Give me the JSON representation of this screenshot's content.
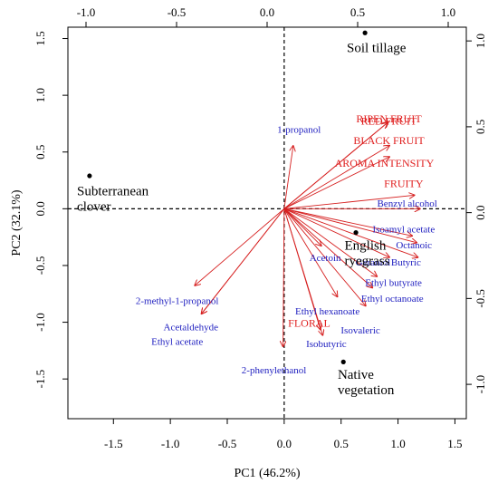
{
  "chart_data": {
    "type": "biplot",
    "xlabel": "PC1 (46.2%)",
    "ylabel": "PC2 (32.1%)",
    "xlim": [
      -1.9,
      1.6
    ],
    "ylim": [
      -1.85,
      1.6
    ],
    "top_lim": [
      -1.1,
      1.1
    ],
    "right_lim": [
      -1.2,
      1.08
    ],
    "bottom_ticks": [
      -1.5,
      -1.0,
      -0.5,
      0.0,
      0.5,
      1.0,
      1.5
    ],
    "left_ticks": [
      -1.5,
      -1.0,
      -0.5,
      0.0,
      0.5,
      1.0,
      1.5
    ],
    "top_ticks": [
      -1.0,
      -0.5,
      0.0,
      0.5,
      1.0
    ],
    "right_ticks": [
      -1.0,
      -0.5,
      0.0,
      0.5,
      1.0
    ],
    "bottom_tick_labels": [
      "-1.5",
      "-1.0",
      "-0.5",
      "0.0",
      "0.5",
      "1.0",
      "1.5"
    ],
    "left_tick_labels": [
      "-1.5",
      "-1.0",
      "-0.5",
      "0.0",
      "0.5",
      "1.0",
      "1.5"
    ],
    "top_tick_labels": [
      "-1.0",
      "-0.5",
      "0.0",
      "0.5",
      "1.0"
    ],
    "right_tick_labels": [
      "-1.0",
      "-0.5",
      "0.0",
      "0.5",
      "1.0"
    ],
    "variables": [
      {
        "name": "RED FRUIT",
        "x": 0.92,
        "y": 0.77,
        "group": "sensory",
        "lx": 0.92,
        "ly": 0.74
      },
      {
        "name": "RIPEN FRUIT",
        "x": 0.91,
        "y": 0.76,
        "group": "sensory",
        "lx": 0.92,
        "ly": 0.76
      },
      {
        "name": "BLACK FRUIT",
        "x": 0.93,
        "y": 0.56,
        "group": "sensory",
        "lx": 0.92,
        "ly": 0.57
      },
      {
        "name": "AROMA INTENSITY",
        "x": 0.93,
        "y": 0.46,
        "group": "sensory",
        "lx": 0.88,
        "ly": 0.37
      },
      {
        "name": "FRUITY",
        "x": 1.15,
        "y": 0.12,
        "group": "sensory",
        "lx": 1.05,
        "ly": 0.19
      },
      {
        "name": "FLORAL",
        "x": 0.32,
        "y": -1.07,
        "group": "sensory",
        "lx": 0.22,
        "ly": -1.04
      },
      {
        "name": "1-propanol",
        "x": 0.08,
        "y": 0.56,
        "group": "compound",
        "lx": 0.13,
        "ly": 0.67
      },
      {
        "name": "Benzyl alcohol",
        "x": 1.2,
        "y": 0.0,
        "group": "compound",
        "lx": 1.08,
        "ly": 0.02
      },
      {
        "name": "Isoamyl acetate",
        "x": 1.13,
        "y": -0.24,
        "group": "compound",
        "lx": 1.05,
        "ly": -0.21
      },
      {
        "name": "Octanoic",
        "x": 1.17,
        "y": -0.3,
        "group": "compound",
        "lx": 1.14,
        "ly": -0.35
      },
      {
        "name": "Butyric",
        "x": 1.18,
        "y": -0.43,
        "group": "compound",
        "lx": 1.07,
        "ly": -0.5
      },
      {
        "name": "Geraniol",
        "x": 0.93,
        "y": -0.43,
        "group": "compound",
        "lx": 0.78,
        "ly": -0.5
      },
      {
        "name": "Acetoin",
        "x": 0.33,
        "y": -0.33,
        "group": "compound",
        "lx": 0.36,
        "ly": -0.46
      },
      {
        "name": "Ethyl butyrate",
        "x": 0.82,
        "y": -0.6,
        "group": "compound",
        "lx": 0.96,
        "ly": -0.68
      },
      {
        "name": "Ethyl octanoate",
        "x": 0.78,
        "y": -0.7,
        "group": "compound",
        "lx": 0.95,
        "ly": -0.82
      },
      {
        "name": "Ethyl hexanoate",
        "x": 0.47,
        "y": -0.78,
        "group": "compound",
        "lx": 0.38,
        "ly": -0.93
      },
      {
        "name": "Isovaleric",
        "x": 0.72,
        "y": -0.86,
        "group": "compound",
        "lx": 0.67,
        "ly": -1.1
      },
      {
        "name": "Isobutyric",
        "x": 0.34,
        "y": -1.12,
        "group": "compound",
        "lx": 0.37,
        "ly": -1.22
      },
      {
        "name": "2-phenylethanol",
        "x": -0.01,
        "y": -1.22,
        "group": "compound",
        "lx": -0.09,
        "ly": -1.45
      },
      {
        "name": "2-methyl-1-propanol",
        "x": -0.79,
        "y": -0.68,
        "group": "compound",
        "lx": -0.94,
        "ly": -0.84
      },
      {
        "name": "Acetaldehyde",
        "x": -0.73,
        "y": -0.93,
        "group": "compound",
        "lx": -0.82,
        "ly": -1.07
      },
      {
        "name": "Ethyl acetate",
        "x": -0.73,
        "y": -0.93,
        "group": "compound",
        "lx": -0.94,
        "ly": -1.2
      }
    ],
    "observations": [
      {
        "name": "Soil tillage",
        "x": 0.71,
        "y": 1.55,
        "label_lines": [
          "Soil tillage"
        ],
        "lx": 0.55,
        "ly": 1.38
      },
      {
        "name": "Subterranean clover",
        "x": -1.71,
        "y": 0.29,
        "label_lines": [
          "Subterranean",
          "clover"
        ],
        "lx": -1.82,
        "ly": 0.12
      },
      {
        "name": "English ryegrass",
        "x": 0.63,
        "y": -0.21,
        "label_lines": [
          "English",
          "ryegrass"
        ],
        "lx": 0.53,
        "ly": -0.36
      },
      {
        "name": "Native vegetation",
        "x": 0.52,
        "y": -1.35,
        "label_lines": [
          "Native",
          "vegetation"
        ],
        "lx": 0.47,
        "ly": -1.5
      }
    ]
  }
}
